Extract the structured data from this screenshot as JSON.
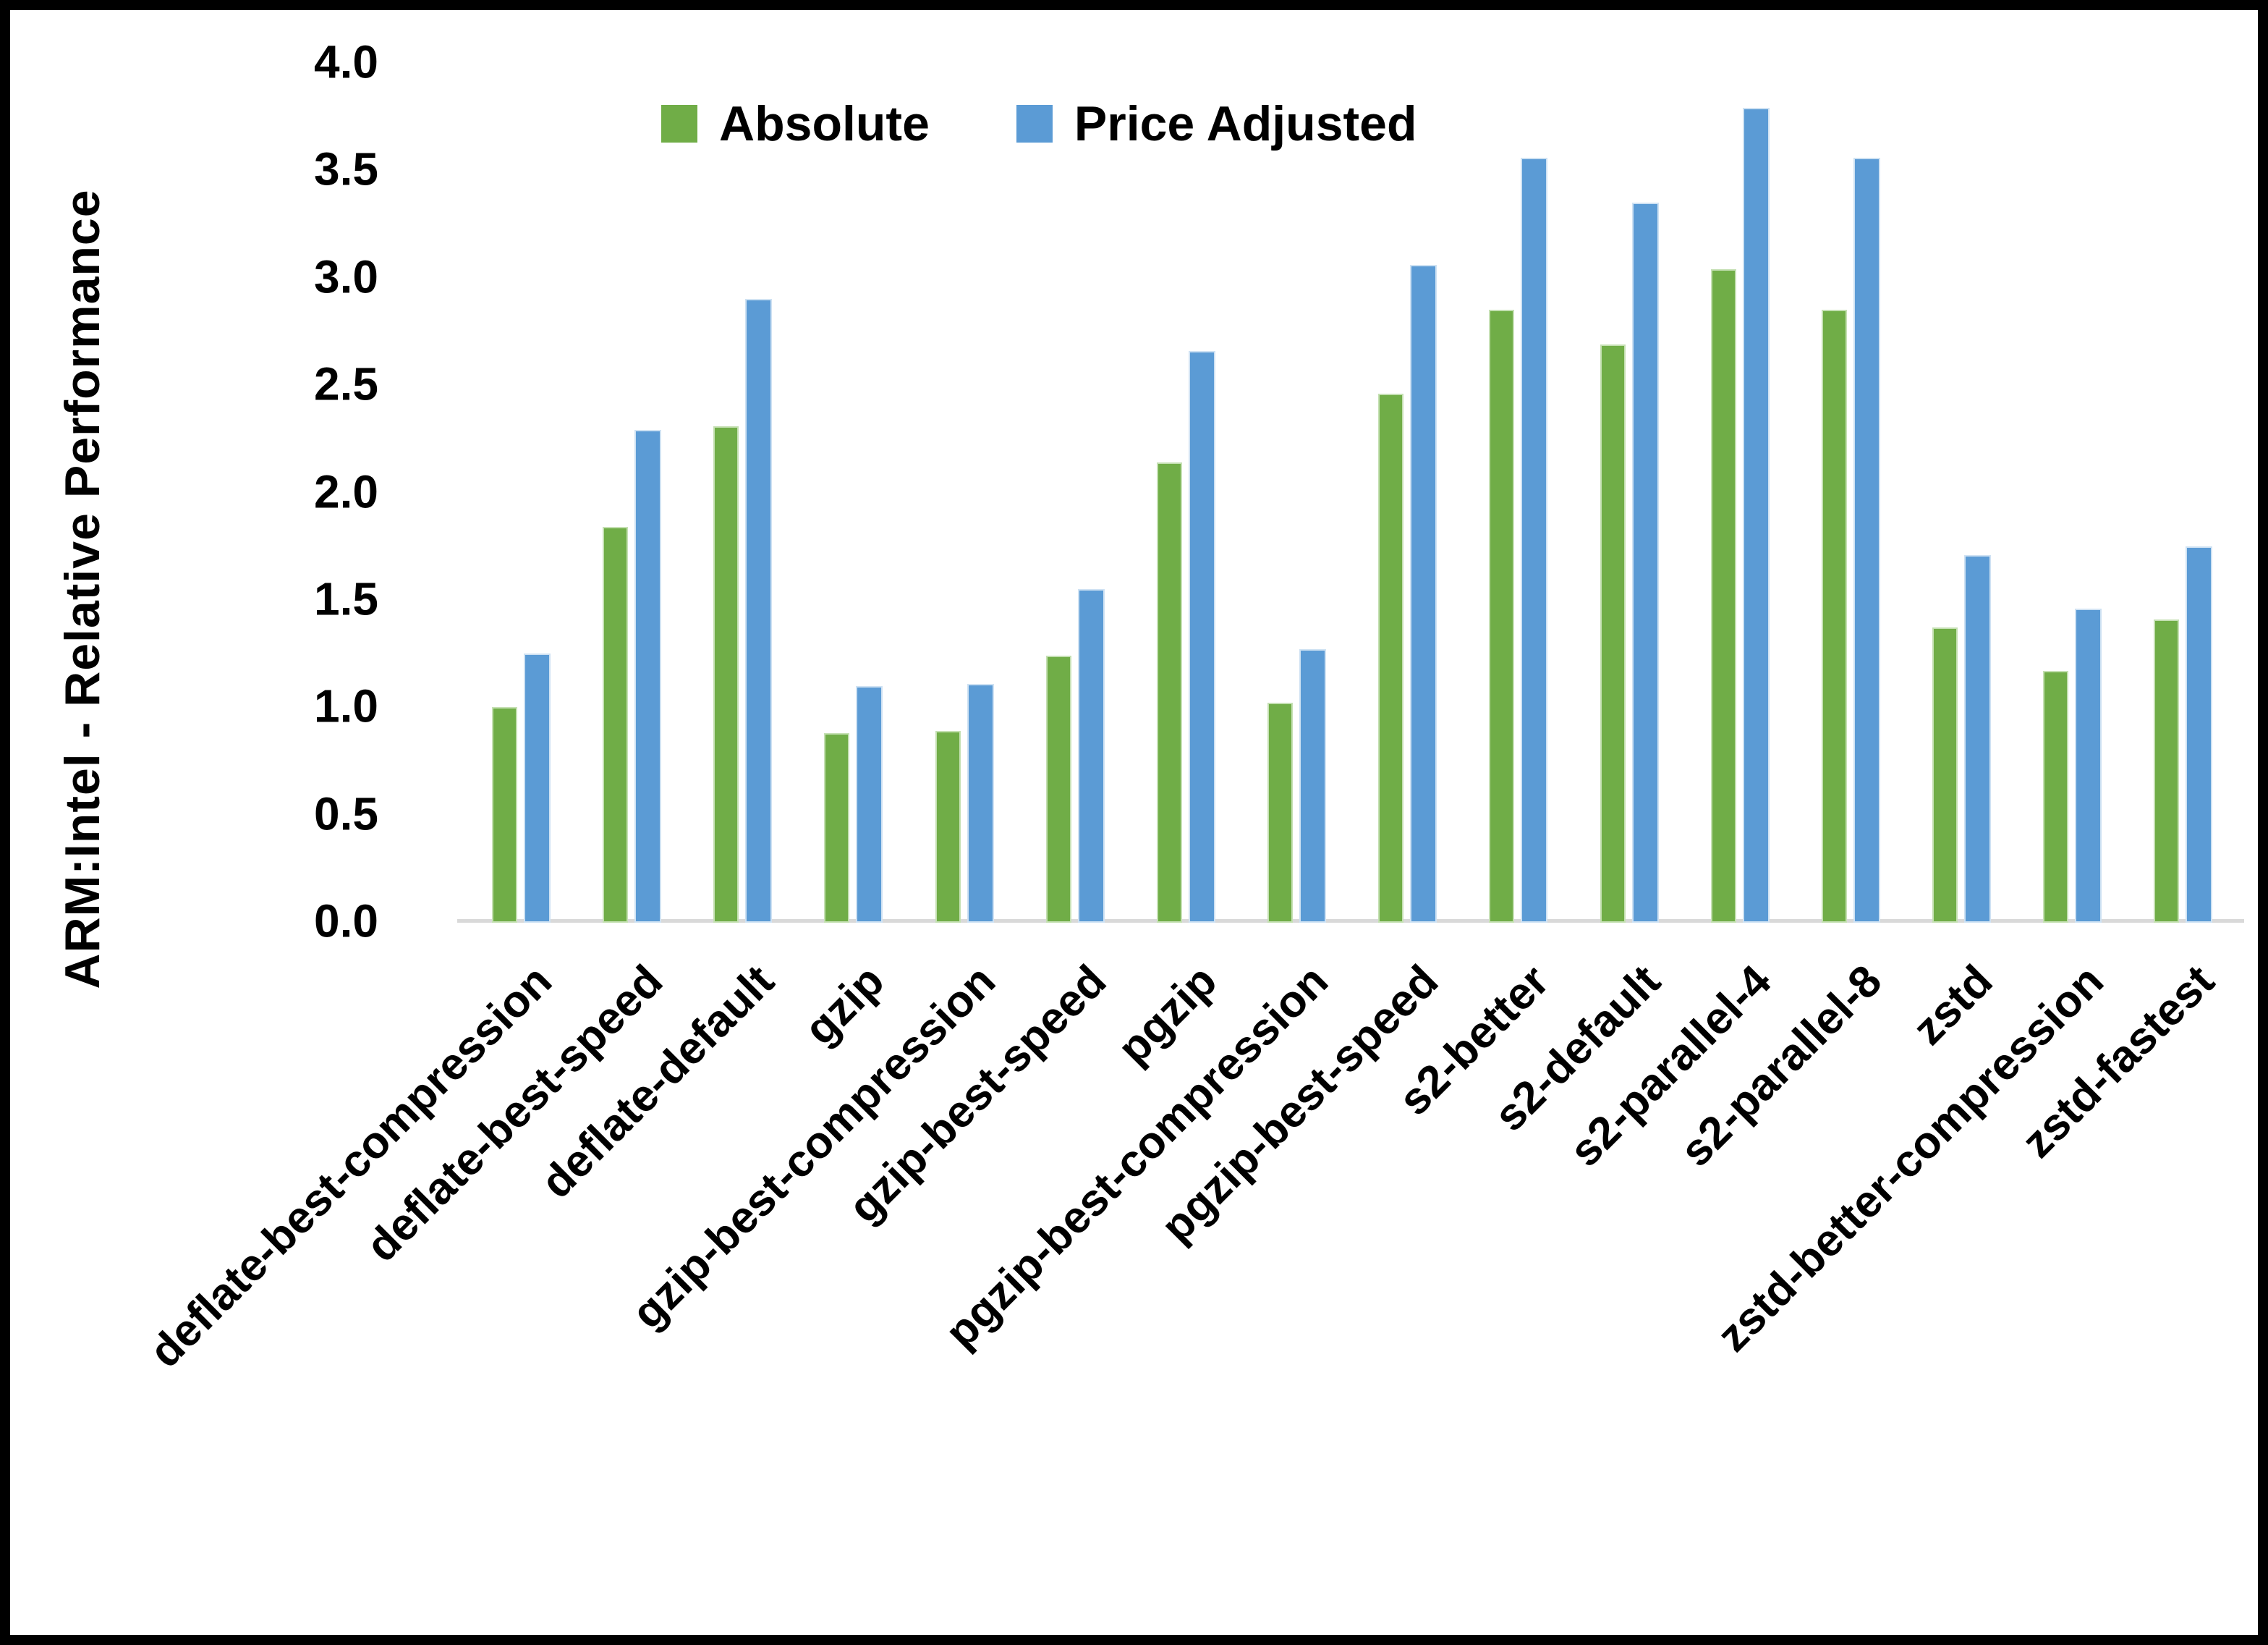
{
  "chart_data": {
    "type": "bar",
    "title": "",
    "ylabel": "ARM:Intel - Relative Performance",
    "xlabel": "",
    "ylim": [
      0.0,
      4.0
    ],
    "ytick_step": 0.5,
    "yticks": [
      "0.0",
      "0.5",
      "1.0",
      "1.5",
      "2.0",
      "2.5",
      "3.0",
      "3.5",
      "4.0"
    ],
    "grid": false,
    "legend_position": "top-center",
    "categories": [
      "deflate-best-compression",
      "deflate-best-speed",
      "deflate-default",
      "gzip",
      "gzip-best-compression",
      "gzip-best-speed",
      "pgzip",
      "pgzip-best-compression",
      "pgzip-best-speed",
      "s2-better",
      "s2-default",
      "s2-parallel-4",
      "s2-parallel-8",
      "zstd",
      "zstd-better-compression",
      "zstd-fastest"
    ],
    "series": [
      {
        "name": "Absolute",
        "color": "#70AD47",
        "edge_color": "#c5e0b3",
        "values": [
          1.0,
          1.84,
          2.31,
          0.88,
          0.89,
          1.24,
          2.14,
          1.02,
          2.46,
          2.85,
          2.69,
          3.04,
          2.85,
          1.37,
          1.17,
          1.41
        ]
      },
      {
        "name": "Price Adjusted",
        "color": "#5B9BD5",
        "edge_color": "#cfe2f3",
        "values": [
          1.25,
          2.29,
          2.9,
          1.1,
          1.11,
          1.55,
          2.66,
          1.27,
          3.06,
          3.56,
          3.35,
          3.79,
          3.56,
          1.71,
          1.46,
          1.75
        ]
      }
    ]
  },
  "colors": {
    "background": "#FFFFFF",
    "frame": "#000000",
    "axis_line": "#D9D9D9",
    "text": "#000000"
  }
}
